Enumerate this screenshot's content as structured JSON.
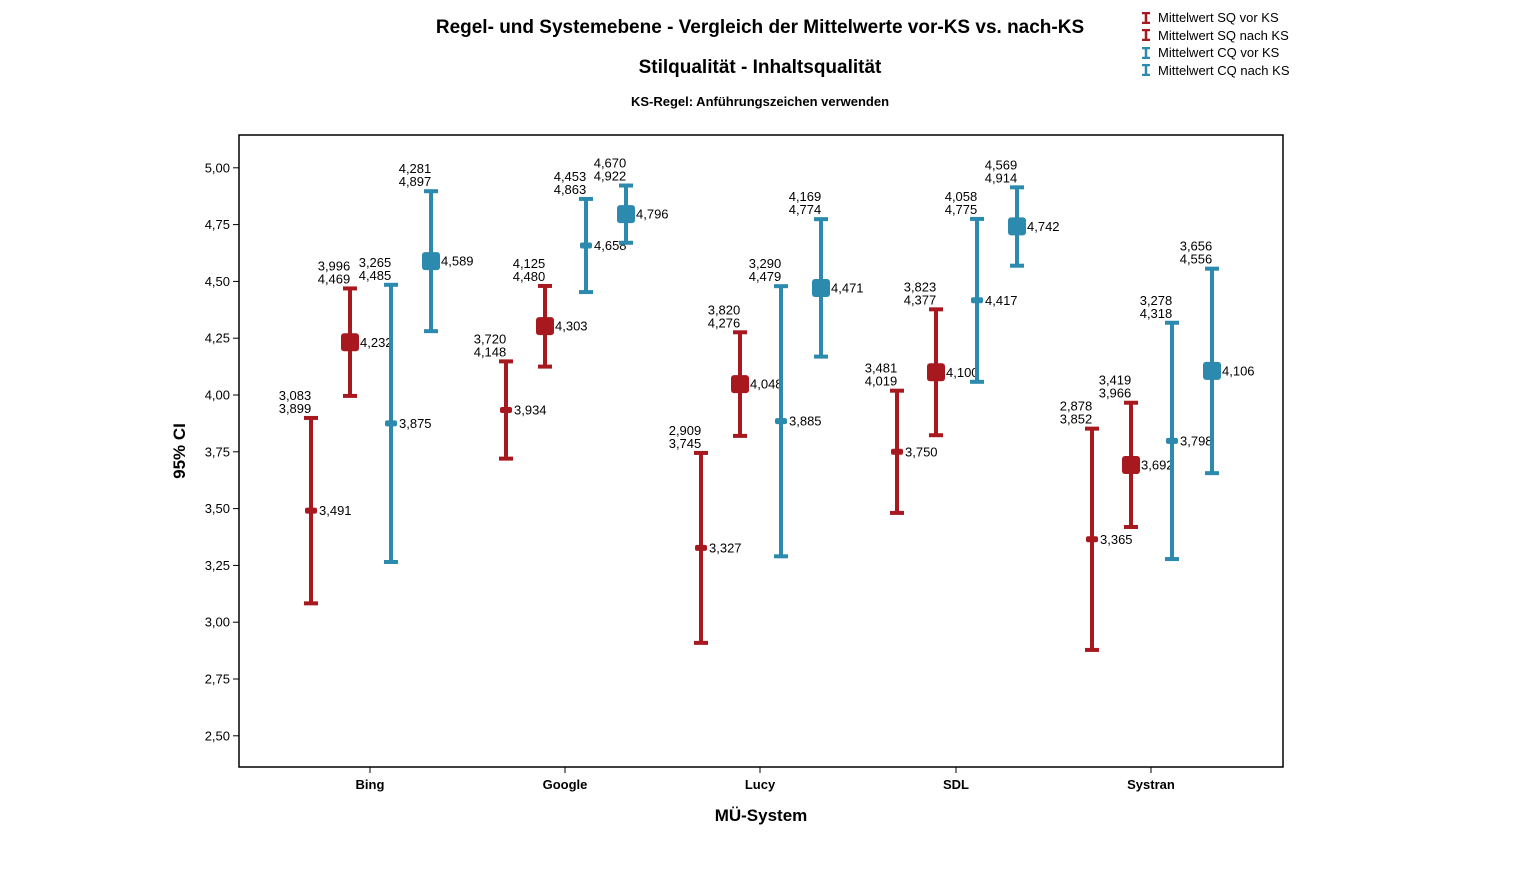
{
  "titles": {
    "title": "Regel- und Systemebene - Vergleich der Mittelwerte vor-KS vs. nach-KS",
    "subtitle": "Stilqualität - Inhaltsqualität",
    "subsubtitle": "KS-Regel: Anführungszeichen verwenden"
  },
  "colors": {
    "sq": "#a8181f",
    "cq": "#2b8aae"
  },
  "chart_data": {
    "type": "errorbar",
    "title": "Regel- und Systemebene - Vergleich der Mittelwerte vor-KS vs. nach-KS",
    "subtitle": "Stilqualität - Inhaltsqualität",
    "subsubtitle": "KS-Regel: Anführungszeichen verwenden",
    "xlabel": "MÜ-System",
    "ylabel": "95% CI",
    "categories": [
      "Bing",
      "Google",
      "Lucy",
      "SDL",
      "Systran"
    ],
    "ylim": [
      2.4,
      5.12
    ],
    "yticks": [
      "2,50",
      "2,75",
      "3,00",
      "3,25",
      "3,50",
      "3,75",
      "4,00",
      "4,25",
      "4,50",
      "4,75",
      "5,00"
    ],
    "ytick_values": [
      2.5,
      2.75,
      3.0,
      3.25,
      3.5,
      3.75,
      4.0,
      4.25,
      4.5,
      4.75,
      5.0
    ],
    "legend_position": "top-right",
    "grid": false,
    "series": [
      {
        "name": "Mittelwert SQ vor KS",
        "color": "#a8181f",
        "marker": "small",
        "lower": [
          "3,083",
          "3,720",
          "2,909",
          "3,481",
          "2,878"
        ],
        "upper": [
          "3,899",
          "4,148",
          "3,745",
          "4,019",
          "3,852"
        ],
        "mean": [
          "3,491",
          "3,934",
          "3,327",
          "3,750",
          "3,365"
        ]
      },
      {
        "name": "Mittelwert SQ nach KS",
        "color": "#a8181f",
        "marker": "large",
        "lower": [
          "3,996",
          "4,125",
          "3,820",
          "3,823",
          "3,419"
        ],
        "upper": [
          "4,469",
          "4,480",
          "4,276",
          "4,377",
          "3,966"
        ],
        "mean": [
          "4,232",
          "4,303",
          "4,048",
          "4,100",
          "3,692"
        ]
      },
      {
        "name": "Mittelwert CQ vor KS",
        "color": "#2b8aae",
        "marker": "small",
        "lower": [
          "3,265",
          "4,453",
          "3,290",
          "4,058",
          "3,278"
        ],
        "upper": [
          "4,485",
          "4,863",
          "4,479",
          "4,775",
          "4,318"
        ],
        "mean": [
          "3,875",
          "4,658",
          "3,885",
          "4,417",
          "3,798"
        ]
      },
      {
        "name": "Mittelwert CQ nach KS",
        "color": "#2b8aae",
        "marker": "large",
        "lower": [
          "4,281",
          "4,670",
          "4,169",
          "4,569",
          "3,656"
        ],
        "upper": [
          "4,897",
          "4,922",
          "4,774",
          "4,914",
          "4,556"
        ],
        "mean": [
          "4,589",
          "4,796",
          "4,471",
          "4,742",
          "4,106"
        ]
      }
    ]
  }
}
